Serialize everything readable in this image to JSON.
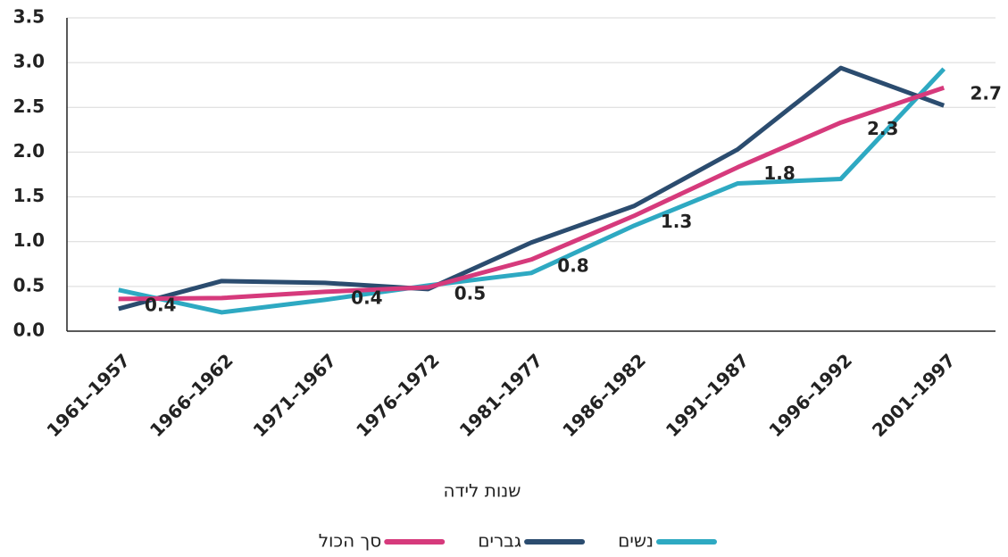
{
  "chart_data": {
    "type": "line",
    "x_label": "שנות לידה",
    "categories": [
      "1961–1957",
      "1966–1962",
      "1971–1967",
      "1976–1972",
      "1981–1977",
      "1986–1982",
      "1991–1987",
      "1996–1992",
      "2001–1997"
    ],
    "series": [
      {
        "name": "נשים",
        "color": "#2ea9c2",
        "values": [
          0.46,
          0.21,
          0.35,
          0.51,
          0.65,
          1.18,
          1.65,
          1.7,
          2.93
        ]
      },
      {
        "name": "גברים",
        "color": "#2b4c6f",
        "values": [
          0.25,
          0.56,
          0.54,
          0.47,
          0.99,
          1.4,
          2.03,
          2.94,
          2.52
        ]
      },
      {
        "name": "סך הכול",
        "color": "#d63a7c",
        "values": [
          0.36,
          0.37,
          0.44,
          0.49,
          0.8,
          1.29,
          1.83,
          2.33,
          2.72
        ],
        "value_labels": [
          "0.4",
          null,
          "0.4",
          "0.5",
          "0.8",
          "1.3",
          "1.8",
          "2.3",
          "2.7"
        ]
      }
    ],
    "ylim": [
      0,
      3.5
    ],
    "yticks": [
      {
        "value": 0,
        "label": "0.0"
      },
      0.5,
      {
        "value": 1,
        "label": "1.0"
      },
      1.5,
      {
        "value": 2,
        "label": "2.0"
      },
      2.5,
      {
        "value": 3,
        "label": "3.0"
      },
      3.5
    ],
    "grid": true
  }
}
